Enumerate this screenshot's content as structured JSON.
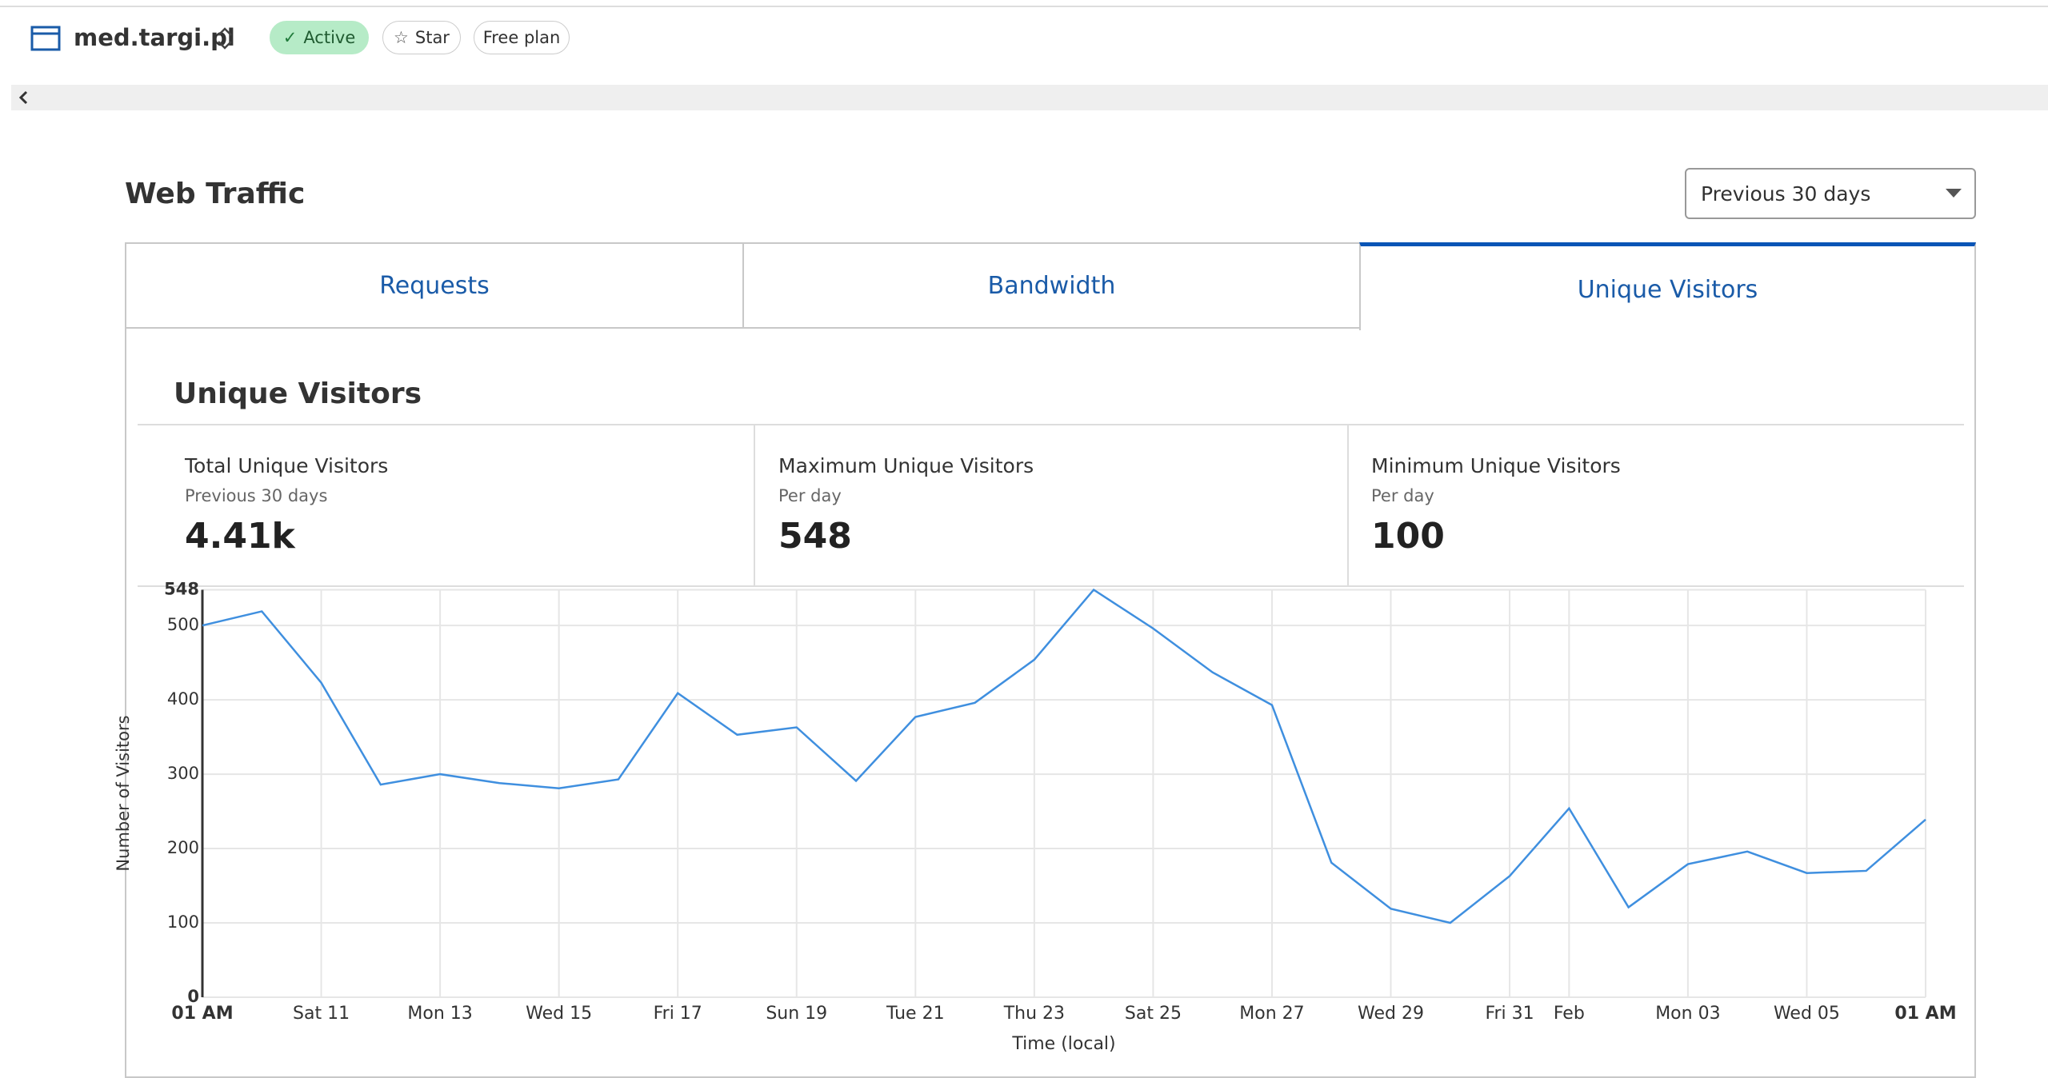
{
  "header": {
    "site": "med.targi.pl",
    "badges": [
      "Active",
      "Star",
      "Free plan"
    ]
  },
  "traffic": {
    "title": "Web Traffic",
    "range": "Previous 30 days",
    "tabs": [
      "Requests",
      "Bandwidth",
      "Unique Visitors"
    ],
    "panel_title": "Unique Visitors",
    "stats": [
      {
        "label": "Total Unique Visitors",
        "sub": "Previous 30 days",
        "value": "4.41k"
      },
      {
        "label": "Maximum Unique Visitors",
        "sub": "Per day",
        "value": 548
      },
      {
        "label": "Minimum Unique Visitors",
        "sub": "Per day",
        "value": 100
      }
    ]
  },
  "chart_data": {
    "type": "line",
    "x_label": "Time (local)",
    "y_label": "Number of Visitors",
    "color": "#3f8fdf",
    "categories": [
      "01 AM",
      null,
      "Sat 11",
      null,
      "Mon 13",
      null,
      "Wed 15",
      null,
      "Fri 17",
      null,
      "Sun 19",
      null,
      "Tue 21",
      null,
      "Thu 23",
      null,
      "Sat 25",
      null,
      "Mon 27",
      null,
      "Wed 29",
      null,
      "Fri 31",
      "Feb",
      null,
      "Mon 03",
      null,
      "Wed 05",
      null,
      "01 AM"
    ],
    "values": [
      500,
      519,
      423,
      286,
      300,
      288,
      281,
      293,
      409,
      353,
      363,
      291,
      377,
      396,
      454,
      548,
      496,
      437,
      393,
      181,
      119,
      100,
      163,
      254,
      121,
      179,
      196,
      167,
      170,
      239
    ],
    "ylim": [
      0,
      548
    ],
    "yticks": [
      0,
      100,
      200,
      300,
      400,
      500,
      548
    ],
    "grid": true
  }
}
